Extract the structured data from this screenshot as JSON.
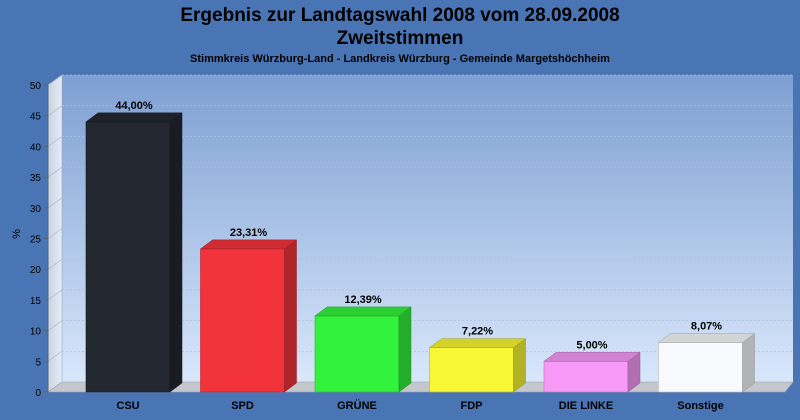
{
  "chart_data": {
    "type": "bar",
    "title_line1": "Ergebnis zur Landtagswahl 2008 vom 28.09.2008",
    "title_line2": "Zweitstimmen",
    "subtitle": "Stimmkreis Würzburg-Land - Landkreis Würzburg - Gemeinde Margetshöchheim",
    "ylabel": "%",
    "ylim": [
      0,
      50
    ],
    "yticks": [
      "0",
      "5",
      "10",
      "15",
      "20",
      "25",
      "30",
      "35",
      "40",
      "45",
      "50"
    ],
    "categories": [
      "CSU",
      "SPD",
      "GRÜNE",
      "FDP",
      "DIE LINKE",
      "Sonstige"
    ],
    "values": [
      44.0,
      23.31,
      12.39,
      7.22,
      5.0,
      8.07
    ],
    "value_labels": [
      "44,00%",
      "23,31%",
      "12,39%",
      "7,22%",
      "5,00%",
      "8,07%"
    ],
    "colors": [
      "#23272f",
      "#f2333b",
      "#33f23c",
      "#f7f733",
      "#f799f7",
      "#f7f9fc"
    ],
    "grid": true,
    "legend": "none"
  }
}
